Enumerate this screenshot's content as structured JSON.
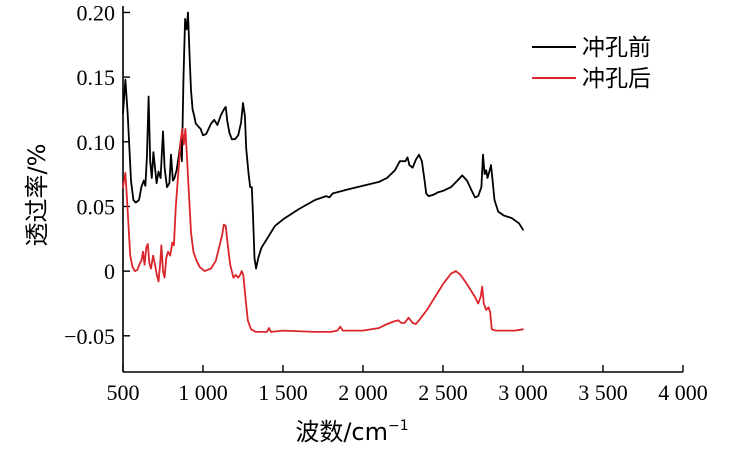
{
  "chart_data": {
    "type": "line",
    "xlabel": "波数/cm",
    "xlabel_sup": "−1",
    "ylabel": "透过率/%",
    "xlim": [
      500,
      4000
    ],
    "ylim": [
      -0.078,
      0.205
    ],
    "x_ticks": [
      500,
      1000,
      1500,
      2000,
      2500,
      3000,
      3500,
      4000
    ],
    "x_tick_labels": [
      "500",
      "1 000",
      "1 500",
      "2 000",
      "2 500",
      "3 000",
      "3 500",
      "4 000"
    ],
    "y_ticks": [
      -0.05,
      0,
      0.05,
      0.1,
      0.15,
      0.2
    ],
    "y_tick_labels": [
      "−0.05",
      "0",
      "0.05",
      "0.10",
      "0.15",
      "0.20"
    ],
    "grid": false,
    "legend_position": "top-right",
    "series": [
      {
        "name": "冲孔前",
        "color": "#000000",
        "points": [
          [
            500,
            0.122
          ],
          [
            515,
            0.148
          ],
          [
            530,
            0.12
          ],
          [
            550,
            0.07
          ],
          [
            565,
            0.055
          ],
          [
            580,
            0.053
          ],
          [
            600,
            0.055
          ],
          [
            615,
            0.065
          ],
          [
            630,
            0.07
          ],
          [
            640,
            0.066
          ],
          [
            650,
            0.09
          ],
          [
            660,
            0.135
          ],
          [
            670,
            0.085
          ],
          [
            680,
            0.072
          ],
          [
            690,
            0.092
          ],
          [
            700,
            0.08
          ],
          [
            710,
            0.068
          ],
          [
            722,
            0.077
          ],
          [
            735,
            0.072
          ],
          [
            750,
            0.108
          ],
          [
            760,
            0.08
          ],
          [
            775,
            0.065
          ],
          [
            790,
            0.068
          ],
          [
            800,
            0.09
          ],
          [
            812,
            0.07
          ],
          [
            822,
            0.072
          ],
          [
            835,
            0.078
          ],
          [
            850,
            0.09
          ],
          [
            860,
            0.1
          ],
          [
            868,
            0.085
          ],
          [
            878,
            0.15
          ],
          [
            888,
            0.195
          ],
          [
            898,
            0.187
          ],
          [
            906,
            0.2
          ],
          [
            915,
            0.17
          ],
          [
            925,
            0.14
          ],
          [
            935,
            0.125
          ],
          [
            945,
            0.12
          ],
          [
            955,
            0.114
          ],
          [
            970,
            0.112
          ],
          [
            985,
            0.11
          ],
          [
            1000,
            0.105
          ],
          [
            1020,
            0.106
          ],
          [
            1050,
            0.114
          ],
          [
            1070,
            0.117
          ],
          [
            1090,
            0.113
          ],
          [
            1110,
            0.12
          ],
          [
            1130,
            0.125
          ],
          [
            1142,
            0.127
          ],
          [
            1152,
            0.116
          ],
          [
            1165,
            0.107
          ],
          [
            1180,
            0.102
          ],
          [
            1200,
            0.102
          ],
          [
            1220,
            0.105
          ],
          [
            1238,
            0.115
          ],
          [
            1250,
            0.13
          ],
          [
            1262,
            0.12
          ],
          [
            1270,
            0.095
          ],
          [
            1285,
            0.075
          ],
          [
            1295,
            0.065
          ],
          [
            1305,
            0.065
          ],
          [
            1312,
            0.045
          ],
          [
            1322,
            0.01
          ],
          [
            1332,
            0.002
          ],
          [
            1345,
            0.01
          ],
          [
            1365,
            0.018
          ],
          [
            1400,
            0.025
          ],
          [
            1450,
            0.035
          ],
          [
            1500,
            0.04
          ],
          [
            1600,
            0.048
          ],
          [
            1700,
            0.055
          ],
          [
            1770,
            0.058
          ],
          [
            1790,
            0.057
          ],
          [
            1810,
            0.06
          ],
          [
            1900,
            0.063
          ],
          [
            2000,
            0.066
          ],
          [
            2100,
            0.069
          ],
          [
            2150,
            0.072
          ],
          [
            2200,
            0.078
          ],
          [
            2230,
            0.085
          ],
          [
            2265,
            0.085
          ],
          [
            2278,
            0.088
          ],
          [
            2290,
            0.082
          ],
          [
            2310,
            0.08
          ],
          [
            2330,
            0.086
          ],
          [
            2350,
            0.09
          ],
          [
            2368,
            0.085
          ],
          [
            2385,
            0.07
          ],
          [
            2395,
            0.06
          ],
          [
            2410,
            0.058
          ],
          [
            2440,
            0.059
          ],
          [
            2470,
            0.061
          ],
          [
            2500,
            0.062
          ],
          [
            2550,
            0.065
          ],
          [
            2590,
            0.07
          ],
          [
            2620,
            0.074
          ],
          [
            2650,
            0.07
          ],
          [
            2680,
            0.062
          ],
          [
            2700,
            0.057
          ],
          [
            2720,
            0.058
          ],
          [
            2740,
            0.065
          ],
          [
            2750,
            0.09
          ],
          [
            2760,
            0.075
          ],
          [
            2770,
            0.078
          ],
          [
            2778,
            0.072
          ],
          [
            2792,
            0.078
          ],
          [
            2800,
            0.082
          ],
          [
            2810,
            0.07
          ],
          [
            2822,
            0.055
          ],
          [
            2845,
            0.046
          ],
          [
            2880,
            0.043
          ],
          [
            2930,
            0.041
          ],
          [
            2975,
            0.037
          ],
          [
            3000,
            0.032
          ]
        ]
      },
      {
        "name": "冲孔后",
        "color": "#d9252b",
        "points": [
          [
            500,
            0.065
          ],
          [
            515,
            0.076
          ],
          [
            530,
            0.045
          ],
          [
            545,
            0.012
          ],
          [
            560,
            0.003
          ],
          [
            575,
            0.0
          ],
          [
            590,
            0.001
          ],
          [
            605,
            0.006
          ],
          [
            615,
            0.008
          ],
          [
            625,
            0.015
          ],
          [
            635,
            0.005
          ],
          [
            645,
            0.018
          ],
          [
            655,
            0.021
          ],
          [
            665,
            0.006
          ],
          [
            675,
            0.002
          ],
          [
            688,
            0.012
          ],
          [
            700,
            0.005
          ],
          [
            712,
            -0.003
          ],
          [
            722,
            -0.008
          ],
          [
            732,
            0.005
          ],
          [
            740,
            0.02
          ],
          [
            750,
            0.0
          ],
          [
            760,
            -0.005
          ],
          [
            770,
            0.01
          ],
          [
            782,
            0.015
          ],
          [
            795,
            0.012
          ],
          [
            808,
            0.022
          ],
          [
            818,
            0.02
          ],
          [
            830,
            0.05
          ],
          [
            845,
            0.075
          ],
          [
            860,
            0.1
          ],
          [
            870,
            0.11
          ],
          [
            880,
            0.098
          ],
          [
            890,
            0.11
          ],
          [
            900,
            0.088
          ],
          [
            912,
            0.06
          ],
          [
            925,
            0.03
          ],
          [
            940,
            0.015
          ],
          [
            960,
            0.008
          ],
          [
            980,
            0.003
          ],
          [
            1010,
            0.0
          ],
          [
            1050,
            0.002
          ],
          [
            1080,
            0.008
          ],
          [
            1100,
            0.018
          ],
          [
            1120,
            0.028
          ],
          [
            1130,
            0.036
          ],
          [
            1142,
            0.035
          ],
          [
            1155,
            0.02
          ],
          [
            1170,
            0.005
          ],
          [
            1190,
            -0.005
          ],
          [
            1205,
            -0.003
          ],
          [
            1220,
            -0.005
          ],
          [
            1232,
            -0.003
          ],
          [
            1242,
            0.0
          ],
          [
            1252,
            -0.003
          ],
          [
            1265,
            -0.02
          ],
          [
            1280,
            -0.038
          ],
          [
            1300,
            -0.045
          ],
          [
            1330,
            -0.047
          ],
          [
            1400,
            -0.047
          ],
          [
            1412,
            -0.044
          ],
          [
            1425,
            -0.047
          ],
          [
            1500,
            -0.046
          ],
          [
            1700,
            -0.047
          ],
          [
            1800,
            -0.047
          ],
          [
            1840,
            -0.046
          ],
          [
            1858,
            -0.043
          ],
          [
            1875,
            -0.046
          ],
          [
            1900,
            -0.046
          ],
          [
            2000,
            -0.046
          ],
          [
            2100,
            -0.044
          ],
          [
            2150,
            -0.041
          ],
          [
            2190,
            -0.039
          ],
          [
            2220,
            -0.038
          ],
          [
            2240,
            -0.04
          ],
          [
            2260,
            -0.04
          ],
          [
            2285,
            -0.036
          ],
          [
            2310,
            -0.04
          ],
          [
            2330,
            -0.041
          ],
          [
            2350,
            -0.038
          ],
          [
            2400,
            -0.03
          ],
          [
            2450,
            -0.02
          ],
          [
            2500,
            -0.01
          ],
          [
            2550,
            -0.002
          ],
          [
            2580,
            0.0
          ],
          [
            2610,
            -0.003
          ],
          [
            2650,
            -0.01
          ],
          [
            2700,
            -0.02
          ],
          [
            2720,
            -0.025
          ],
          [
            2735,
            -0.02
          ],
          [
            2745,
            -0.012
          ],
          [
            2755,
            -0.025
          ],
          [
            2770,
            -0.03
          ],
          [
            2785,
            -0.028
          ],
          [
            2795,
            -0.032
          ],
          [
            2805,
            -0.045
          ],
          [
            2830,
            -0.046
          ],
          [
            2880,
            -0.046
          ],
          [
            2950,
            -0.046
          ],
          [
            3000,
            -0.045
          ]
        ]
      }
    ]
  }
}
